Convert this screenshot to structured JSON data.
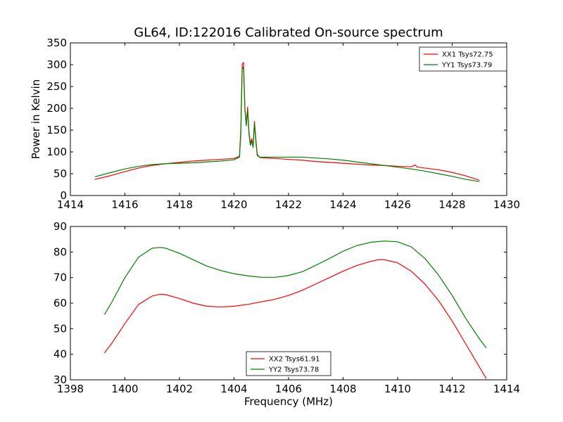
{
  "title": "GL64, ID:122016 Calibrated On-source spectrum",
  "chart_data": [
    {
      "type": "line",
      "xlim": [
        1414,
        1430
      ],
      "ylim": [
        0,
        350
      ],
      "ylabel": "Power in Kelvin",
      "xlabel": "",
      "xticks": [
        1414,
        1416,
        1418,
        1420,
        1422,
        1424,
        1426,
        1428,
        1430
      ],
      "yticks": [
        0,
        50,
        100,
        150,
        200,
        250,
        300,
        350
      ],
      "legend_position": "top-right",
      "series": [
        {
          "name": "XX1 Tsys72.75",
          "color": "#ff0000",
          "x": [
            1414.9,
            1415.5,
            1416,
            1416.5,
            1417,
            1417.5,
            1418,
            1418.5,
            1419,
            1419.5,
            1420,
            1420.2,
            1420.25,
            1420.3,
            1420.35,
            1420.4,
            1420.45,
            1420.5,
            1420.55,
            1420.6,
            1420.65,
            1420.7,
            1420.75,
            1420.8,
            1420.85,
            1420.95,
            1421.5,
            1422,
            1422.5,
            1423,
            1423.5,
            1424,
            1424.5,
            1425,
            1425.5,
            1426,
            1426.5,
            1426.65,
            1426.7,
            1426.75,
            1427,
            1427.5,
            1428,
            1428.5,
            1429
          ],
          "y": [
            37,
            46,
            55,
            63,
            69,
            73,
            76,
            79,
            81,
            83,
            85,
            90,
            150,
            300,
            305,
            200,
            165,
            203,
            145,
            120,
            130,
            115,
            170,
            130,
            95,
            87,
            85,
            83,
            81,
            78,
            76,
            74,
            72,
            70,
            69,
            67,
            66,
            70,
            66,
            65,
            63,
            59,
            53,
            45,
            35
          ]
        },
        {
          "name": "YY1 Tsys73.79",
          "color": "#008000",
          "x": [
            1414.9,
            1415.5,
            1416,
            1416.5,
            1417,
            1417.5,
            1418,
            1418.5,
            1419,
            1419.5,
            1420,
            1420.2,
            1420.25,
            1420.3,
            1420.35,
            1420.4,
            1420.45,
            1420.5,
            1420.55,
            1420.6,
            1420.65,
            1420.7,
            1420.75,
            1420.8,
            1420.85,
            1420.95,
            1421.5,
            1422,
            1422.5,
            1423,
            1423.5,
            1424,
            1424.5,
            1425,
            1425.5,
            1426,
            1426.5,
            1427,
            1427.5,
            1428,
            1428.5,
            1429
          ],
          "y": [
            43,
            53,
            61,
            67,
            71,
            73,
            74,
            75,
            77,
            79,
            82,
            88,
            140,
            290,
            295,
            195,
            160,
            195,
            140,
            115,
            125,
            110,
            165,
            125,
            92,
            88,
            88,
            88,
            88,
            86,
            84,
            81,
            77,
            73,
            69,
            65,
            61,
            56,
            50,
            44,
            37,
            32
          ]
        }
      ]
    },
    {
      "type": "line",
      "xlim": [
        1398,
        1414
      ],
      "ylim": [
        30,
        90
      ],
      "xlabel": "Frequency (MHz)",
      "ylabel": "",
      "xticks": [
        1398,
        1400,
        1402,
        1404,
        1406,
        1408,
        1410,
        1412,
        1414
      ],
      "yticks": [
        30,
        40,
        50,
        60,
        70,
        80,
        90
      ],
      "legend_position": "lower-center",
      "series": [
        {
          "name": "XX2 Tsys61.91",
          "color": "#ff0000",
          "x": [
            1399.25,
            1399.5,
            1400,
            1400.5,
            1401,
            1401.3,
            1401.5,
            1402,
            1402.5,
            1403,
            1403.5,
            1404,
            1404.5,
            1405,
            1405.5,
            1406,
            1406.5,
            1407,
            1407.5,
            1408,
            1408.5,
            1409,
            1409.3,
            1409.5,
            1410,
            1410.5,
            1411,
            1411.5,
            1412,
            1412.5,
            1413,
            1413.25
          ],
          "y": [
            40.5,
            44,
            52,
            59.5,
            62.8,
            63.5,
            63.3,
            61.8,
            60,
            58.8,
            58.5,
            58.8,
            59.5,
            60.5,
            61.5,
            63,
            65,
            67.5,
            70,
            72.5,
            74.7,
            76.3,
            77,
            77,
            75.8,
            72.5,
            67.5,
            61,
            53,
            44,
            35,
            30.5
          ]
        },
        {
          "name": "YY2 Tsys73.78",
          "color": "#008000",
          "x": [
            1399.25,
            1399.5,
            1400,
            1400.5,
            1401,
            1401.3,
            1401.5,
            1402,
            1402.5,
            1403,
            1403.5,
            1404,
            1404.5,
            1405,
            1405.5,
            1406,
            1406.5,
            1407,
            1407.5,
            1408,
            1408.5,
            1409,
            1409.5,
            1410,
            1410.5,
            1411,
            1411.5,
            1412,
            1412.5,
            1413,
            1413.25
          ],
          "y": [
            55.5,
            60,
            70,
            78,
            81.5,
            81.8,
            81.5,
            79.5,
            77,
            74.5,
            72.8,
            71.5,
            70.7,
            70.1,
            70.1,
            70.8,
            72.3,
            74.8,
            77.5,
            80.3,
            82.5,
            83.8,
            84.3,
            84,
            82,
            77.5,
            71,
            63,
            54,
            46,
            42.5
          ]
        }
      ]
    }
  ]
}
